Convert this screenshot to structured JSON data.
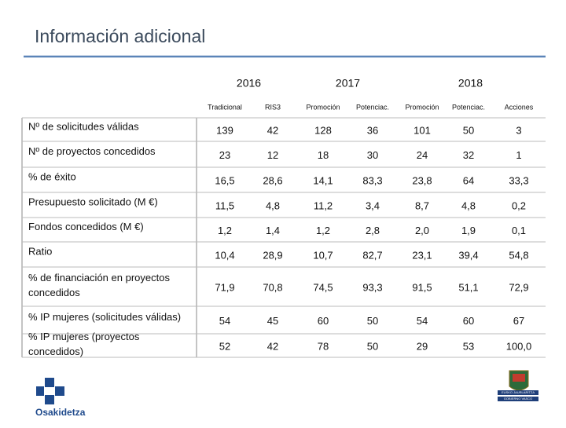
{
  "header": {
    "title": "Información adicional"
  },
  "table": {
    "years": [
      {
        "label": "2016",
        "span": 2
      },
      {
        "label": "2017",
        "span": 2
      },
      {
        "label": "2018",
        "span": 3
      }
    ],
    "columns": [
      "Tradicional",
      "RIS3",
      "Promoción",
      "Potenciac.",
      "Promoción",
      "Potenciac.",
      "Acciones"
    ],
    "rows": [
      {
        "label": "Nº de solicitudes válidas",
        "values": [
          "139",
          "42",
          "128",
          "36",
          "101",
          "50",
          "3"
        ]
      },
      {
        "label": "Nº de proyectos concedidos",
        "values": [
          "23",
          "12",
          "18",
          "30",
          "24",
          "32",
          "1"
        ]
      },
      {
        "label": "% de éxito",
        "values": [
          "16,5",
          "28,6",
          "14,1",
          "83,3",
          "23,8",
          "64",
          "33,3"
        ]
      },
      {
        "label": "Presupuesto solicitado (M €)",
        "values": [
          "11,5",
          "4,8",
          "11,2",
          "3,4",
          "8,7",
          "4,8",
          "0,2"
        ]
      },
      {
        "label": "Fondos concedidos (M €)",
        "values": [
          "1,2",
          "1,4",
          "1,2",
          "2,8",
          "2,0",
          "1,9",
          "0,1"
        ]
      },
      {
        "label": "Ratio",
        "values": [
          "10,4",
          "28,9",
          "10,7",
          "82,7",
          "23,1",
          "39,4",
          "54,8"
        ]
      },
      {
        "label": "% de financiación en proyectos concedidos",
        "values": [
          "71,9",
          "70,8",
          "74,5",
          "93,3",
          "91,5",
          "51,1",
          "72,9"
        ]
      },
      {
        "label": "% IP mujeres (solicitudes válidas)",
        "values": [
          "54",
          "45",
          "60",
          "50",
          "54",
          "60",
          "67"
        ]
      },
      {
        "label": "% IP mujeres (proyectos concedidos)",
        "values": [
          "52",
          "42",
          "78",
          "50",
          "29",
          "53",
          "100,0"
        ]
      }
    ]
  },
  "footer": {
    "left_logo": "Osakidetza",
    "right_logo": [
      "EUSKO JAURLARITZA",
      "GOBIERNO VASCO"
    ]
  }
}
